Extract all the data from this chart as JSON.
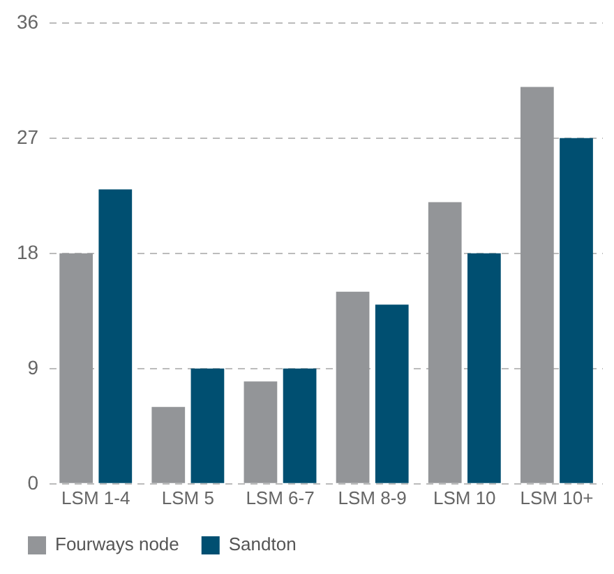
{
  "chart_data": {
    "type": "bar",
    "categories": [
      "LSM 1-4",
      "LSM 5",
      "LSM 6-7",
      "LSM 8-9",
      "LSM 10",
      "LSM 10+"
    ],
    "series": [
      {
        "name": "Fourways node",
        "color": "#939598",
        "values": [
          18,
          6,
          8,
          15,
          22,
          31
        ]
      },
      {
        "name": "Sandton",
        "color": "#004f71",
        "values": [
          23,
          9,
          9,
          14,
          18,
          27
        ]
      }
    ],
    "ylim": [
      0,
      36
    ],
    "yticks": [
      0,
      9,
      18,
      27,
      36
    ],
    "grid": "y",
    "legend": "bottom left"
  }
}
